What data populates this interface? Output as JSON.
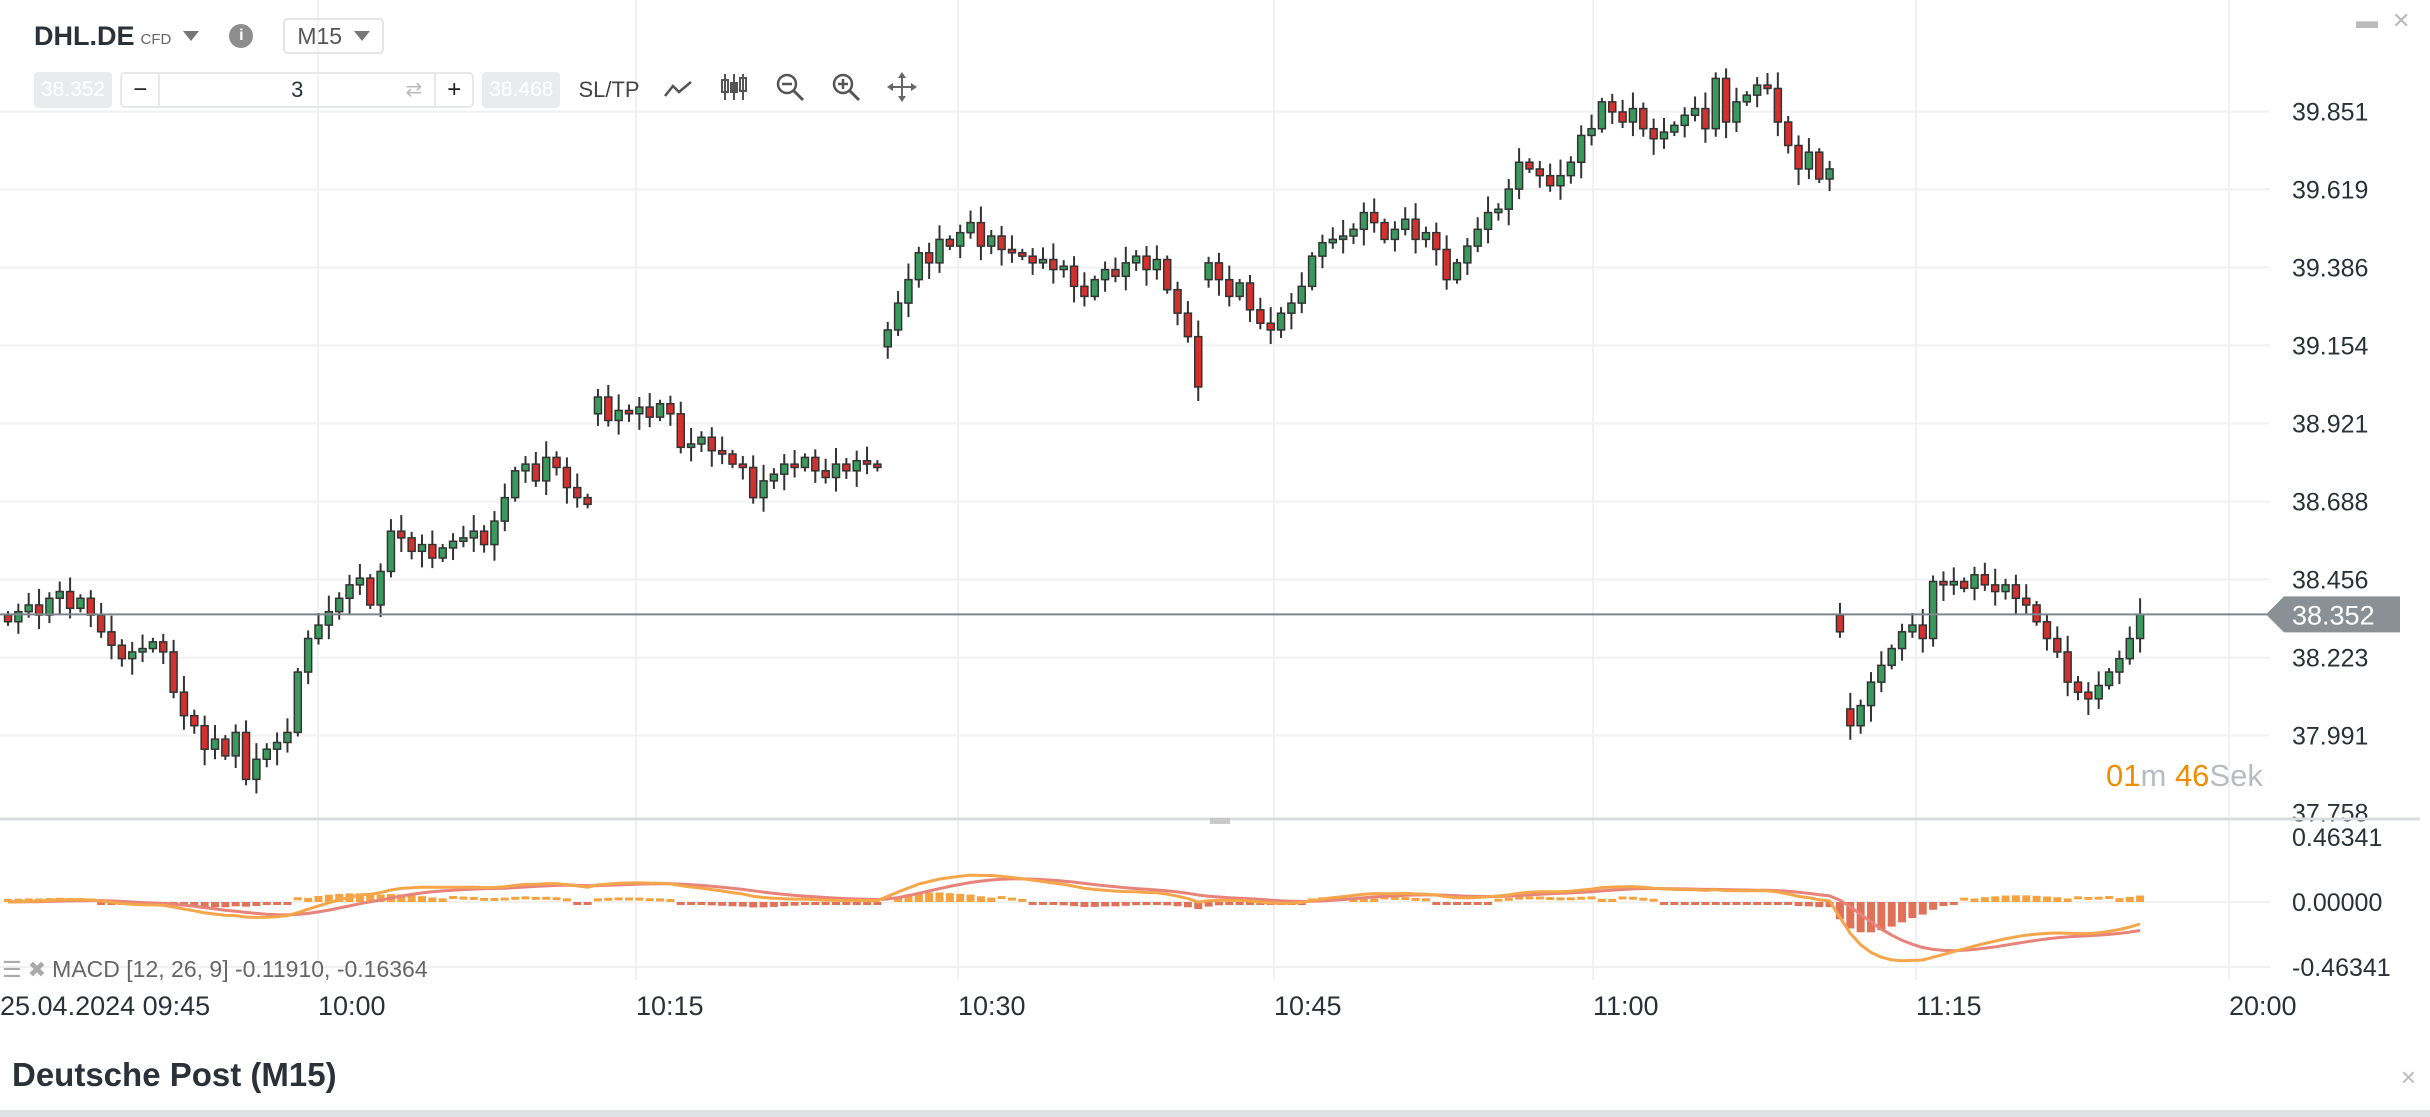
{
  "header": {
    "symbol": "DHL.DE",
    "instrument_type": "CFD",
    "info_icon": "info-icon",
    "timeframe": "M15"
  },
  "toolbar": {
    "sell_price": "38.352",
    "buy_price": "38.468",
    "quantity": "3",
    "minus": "−",
    "plus": "+",
    "swap_icon": "⇄",
    "sltp_label": "SL/TP",
    "icons": [
      "line-chart-icon",
      "candlestick-icon",
      "zoom-out-icon",
      "zoom-in-icon",
      "move-icon"
    ]
  },
  "window": {
    "minimize_icon": "▬",
    "close_icon": "✕"
  },
  "countdown": {
    "minutes": "01",
    "min_unit": "m",
    "seconds": "46",
    "sec_unit": "Sek"
  },
  "macd": {
    "label": "MACD [12, 26, 9] -0.11910, -0.16364"
  },
  "footer": {
    "title": "Deutsche Post (M15)",
    "close_icon": "×"
  },
  "colors": {
    "up": "#3a9a5d",
    "down": "#d2312e",
    "macd_line": "#f5a54a",
    "signal_line": "#e8837a",
    "hist_pos": "#f5a340",
    "hist_neg": "#e07258",
    "price_tag": "#8a9196"
  },
  "chart_data": [
    {
      "type": "candlestick",
      "current_price": "38.352",
      "y_ticks": [
        "39.851",
        "39.619",
        "39.386",
        "39.154",
        "38.921",
        "38.688",
        "38.456",
        "38.223",
        "37.991",
        "37.758"
      ],
      "x_ticks": [
        "25.04.2024 09:45",
        "10:00",
        "10:15",
        "10:30",
        "10:45",
        "11:00",
        "11:15",
        "20:00"
      ],
      "closes": [
        38.33,
        38.36,
        38.38,
        38.35,
        38.4,
        38.42,
        38.37,
        38.4,
        38.35,
        38.3,
        38.26,
        38.22,
        38.24,
        38.25,
        38.27,
        38.24,
        38.12,
        38.05,
        38.02,
        37.95,
        37.98,
        37.93,
        38.0,
        37.86,
        37.92,
        37.95,
        37.97,
        38.0,
        38.18,
        38.28,
        38.32,
        38.36,
        38.4,
        38.44,
        38.46,
        38.38,
        38.48,
        38.6,
        38.58,
        38.54,
        38.56,
        38.52,
        38.55,
        38.57,
        38.58,
        38.6,
        38.56,
        38.63,
        38.7,
        38.78,
        38.8,
        38.75,
        38.82,
        38.79,
        38.73,
        38.7,
        38.68,
        39.0,
        38.93,
        38.96,
        38.95,
        38.97,
        38.94,
        38.98,
        38.95,
        38.85,
        38.86,
        38.88,
        38.84,
        38.83,
        38.8,
        38.79,
        38.7,
        38.75,
        38.77,
        38.8,
        38.79,
        38.82,
        38.78,
        38.76,
        38.8,
        38.78,
        38.81,
        38.8,
        38.79,
        39.2,
        39.28,
        39.35,
        39.43,
        39.4,
        39.47,
        39.45,
        39.49,
        39.52,
        39.45,
        39.48,
        39.44,
        39.43,
        39.42,
        39.4,
        39.41,
        39.38,
        39.39,
        39.33,
        39.3,
        39.35,
        39.38,
        39.36,
        39.4,
        39.42,
        39.38,
        39.41,
        39.32,
        39.25,
        39.18,
        39.03,
        39.4,
        39.35,
        39.3,
        39.34,
        39.26,
        39.22,
        39.2,
        39.25,
        39.28,
        39.33,
        39.42,
        39.46,
        39.47,
        39.48,
        39.5,
        39.55,
        39.52,
        39.47,
        39.5,
        39.53,
        39.47,
        39.49,
        39.44,
        39.35,
        39.4,
        39.45,
        39.5,
        39.55,
        39.56,
        39.62,
        39.7,
        39.68,
        39.66,
        39.63,
        39.66,
        39.7,
        39.78,
        39.8,
        39.88,
        39.85,
        39.82,
        39.86,
        39.8,
        39.77,
        39.79,
        39.81,
        39.84,
        39.86,
        39.8,
        39.95,
        39.82,
        39.88,
        39.9,
        39.93,
        39.92,
        39.82,
        39.75,
        39.68,
        39.73,
        39.65,
        39.68,
        38.3,
        38.02,
        38.08,
        38.15,
        38.2,
        38.25,
        38.3,
        38.32,
        38.28,
        38.45,
        38.44,
        38.45,
        38.43,
        38.47,
        38.44,
        38.42,
        38.44,
        38.4,
        38.38,
        38.33,
        38.28,
        38.24,
        38.15,
        38.12,
        38.1,
        38.14,
        38.18,
        38.22,
        38.28,
        38.352
      ]
    },
    {
      "type": "line",
      "indicator": "MACD [12, 26, 9]",
      "y_ticks": [
        "0.46341",
        "0.00000",
        "-0.46341"
      ],
      "ylim": [
        -0.46341,
        0.46341
      ]
    }
  ]
}
